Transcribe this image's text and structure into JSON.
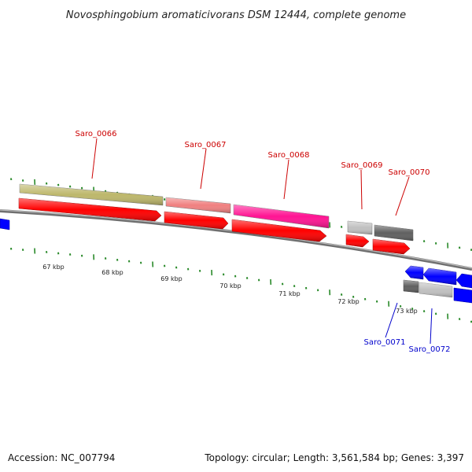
{
  "title": "Novosphingobium aromaticivorans DSM 12444, complete genome",
  "footer": {
    "accession": "Accession: NC_007794",
    "summary": "Topology: circular; Length: 3,561,584 bp; Genes: 3,397"
  },
  "colors": {
    "forward_label": "#cc0000",
    "reverse_label": "#0000cc",
    "tick": "#2a8a2a",
    "backbone": "#888888",
    "cds_forward": "#ff0000",
    "cds_reverse": "#0000ff"
  },
  "scale_labels": [
    "67 kbp",
    "68 kbp",
    "69 kbp",
    "70 kbp",
    "71 kbp",
    "72 kbp",
    "73 kbp"
  ],
  "genes": [
    {
      "name": "Saro_0066",
      "strand": "forward",
      "cog_color": "#bdb76b"
    },
    {
      "name": "Saro_0067",
      "strand": "forward",
      "cog_color": "#f08080"
    },
    {
      "name": "Saro_0068",
      "strand": "forward",
      "cog_color": "#ff1493"
    },
    {
      "name": "Saro_0069",
      "strand": "forward",
      "cog_color": "#c0c0c0"
    },
    {
      "name": "Saro_0070",
      "strand": "forward",
      "cog_color": "#606060"
    },
    {
      "name": "Saro_0071",
      "strand": "reverse",
      "cog_color": "#606060"
    },
    {
      "name": "Saro_0072",
      "strand": "reverse",
      "cog_color": "#c0c0c0"
    }
  ]
}
